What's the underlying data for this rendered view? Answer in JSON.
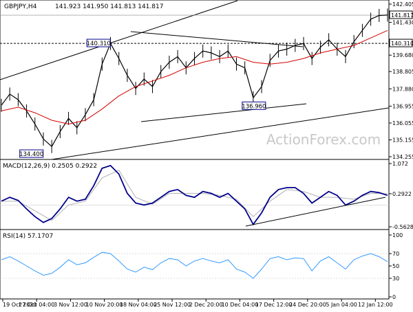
{
  "header": {
    "symbol_text": "GBPJPY,H4",
    "ohlc_text": "141.923 141.950 141.813 141.817"
  },
  "watermark": "ActionForex.com",
  "colors": {
    "price_line": "#000000",
    "sma": "#d40000",
    "macd": "#00008b",
    "signal": "#b0b0b0",
    "rsi": "#3399ff",
    "trendline": "#000000",
    "dashed_level": "#000000",
    "watermark": "#c8c8c8",
    "label_box_border": "#00008b",
    "label_box_fill": "#ffffff",
    "current_price_fill": "#ffffff"
  },
  "chart_data": [
    {
      "type": "line",
      "panel": "price",
      "title": "GBPJPY,H4",
      "ylim": [
        134.255,
        142.405
      ],
      "y_ticks": [
        "142.405",
        "141.430",
        "140.310",
        "139.680",
        "138.805",
        "137.880",
        "136.955",
        "136.055",
        "135.155",
        "134.255"
      ],
      "current_price": "141.817",
      "level_label": "140.310",
      "x_labels": [
        "19 Oct 2020",
        "27 Oct 04:00",
        "3 Nov 12:00",
        "10 Nov 20:00",
        "18 Nov 04:00",
        "25 Nov 12:00",
        "2 Dec 20:00",
        "10 Dec 04:00",
        "17 Dec 12:00",
        "24 Dec 20:00",
        "5 Jan 04:00",
        "12 Jan 12:00"
      ],
      "annotations": [
        {
          "text": "140.310",
          "x": 23,
          "y": 140.31
        },
        {
          "text": "134.400",
          "x": 7,
          "y": 134.4
        },
        {
          "text": "136.960",
          "x": 60,
          "y": 136.96
        }
      ],
      "series": [
        {
          "type": "line",
          "x": [
            0,
            2,
            4,
            6,
            8,
            10,
            12,
            14,
            16,
            18,
            20,
            22,
            24,
            26,
            28,
            30,
            32,
            34,
            36,
            38,
            40,
            42,
            44,
            46,
            48,
            50,
            52,
            54,
            56,
            58,
            60,
            62,
            64,
            66,
            68,
            70,
            72,
            74,
            76,
            78,
            80,
            82,
            84,
            86,
            88,
            90,
            92
          ],
          "values": [
            137.0,
            137.6,
            137.3,
            136.7,
            136.0,
            135.2,
            134.8,
            135.6,
            136.3,
            135.8,
            136.5,
            137.3,
            139.2,
            140.3,
            139.5,
            138.6,
            137.9,
            138.4,
            138.0,
            138.8,
            139.3,
            139.6,
            139.0,
            139.5,
            139.9,
            139.8,
            139.6,
            139.9,
            139.2,
            139.0,
            137.4,
            138.0,
            139.4,
            139.9,
            140.0,
            140.2,
            140.3,
            139.5,
            140.1,
            140.5,
            140.0,
            139.6,
            140.4,
            141.0,
            141.6,
            141.8,
            141.82
          ]
        },
        {
          "type": "line",
          "x": [
            0,
            4,
            8,
            12,
            16,
            20,
            24,
            28,
            32,
            36,
            40,
            44,
            48,
            52,
            56,
            60,
            64,
            68,
            72,
            76,
            80,
            84,
            88,
            92
          ],
          "values": [
            136.7,
            136.9,
            136.6,
            136.2,
            136.0,
            136.2,
            136.8,
            137.5,
            138.0,
            138.3,
            138.6,
            139.0,
            139.3,
            139.5,
            139.6,
            139.3,
            139.2,
            139.3,
            139.5,
            139.8,
            140.0,
            140.2,
            140.6,
            141.0
          ]
        }
      ]
    },
    {
      "type": "line",
      "panel": "macd",
      "title": "MACD(12,26,9) 0.2505 0.2922",
      "ylim": [
        -0.5628,
        1.072
      ],
      "y_ticks": [
        "1.072",
        "0.2922",
        "-0.5628"
      ],
      "series": [
        {
          "type": "line",
          "x": [
            0,
            2,
            4,
            6,
            8,
            10,
            12,
            14,
            16,
            18,
            20,
            22,
            24,
            26,
            28,
            30,
            32,
            34,
            36,
            38,
            40,
            42,
            44,
            46,
            48,
            50,
            52,
            54,
            56,
            58,
            60,
            62,
            64,
            66,
            68,
            70,
            72,
            74,
            76,
            78,
            80,
            82,
            84,
            86,
            88,
            90,
            92
          ],
          "values": [
            0.1,
            0.2,
            0.12,
            -0.1,
            -0.3,
            -0.45,
            -0.35,
            -0.1,
            0.2,
            0.1,
            0.15,
            0.5,
            0.95,
            1.02,
            0.8,
            0.3,
            0.05,
            0.0,
            0.05,
            0.2,
            0.35,
            0.4,
            0.25,
            0.2,
            0.35,
            0.3,
            0.2,
            0.3,
            0.1,
            -0.1,
            -0.5,
            -0.2,
            0.2,
            0.4,
            0.45,
            0.45,
            0.3,
            0.05,
            0.2,
            0.35,
            0.25,
            0.0,
            0.1,
            0.25,
            0.35,
            0.32,
            0.25
          ]
        },
        {
          "type": "line",
          "x": [
            0,
            4,
            8,
            12,
            16,
            20,
            24,
            28,
            32,
            36,
            40,
            44,
            48,
            52,
            56,
            60,
            64,
            68,
            72,
            76,
            80,
            84,
            88,
            92
          ],
          "values": [
            0.1,
            0.1,
            -0.15,
            -0.4,
            0.0,
            0.1,
            0.7,
            0.9,
            0.2,
            0.02,
            0.3,
            0.3,
            0.3,
            0.25,
            0.15,
            -0.3,
            0.1,
            0.4,
            0.35,
            0.2,
            0.2,
            0.15,
            0.3,
            0.29
          ]
        }
      ]
    },
    {
      "type": "line",
      "panel": "rsi",
      "title": "RSI(14) 57.1707",
      "ylim": [
        0,
        100
      ],
      "y_ticks": [
        "100",
        "70",
        "50",
        "30",
        "0"
      ],
      "series": [
        {
          "type": "line",
          "x": [
            0,
            2,
            4,
            6,
            8,
            10,
            12,
            14,
            16,
            18,
            20,
            22,
            24,
            26,
            28,
            30,
            32,
            34,
            36,
            38,
            40,
            42,
            44,
            46,
            48,
            50,
            52,
            54,
            56,
            58,
            60,
            62,
            64,
            66,
            68,
            70,
            72,
            74,
            76,
            78,
            80,
            82,
            84,
            86,
            88,
            90,
            92
          ],
          "values": [
            60,
            65,
            58,
            50,
            42,
            35,
            38,
            48,
            60,
            52,
            55,
            64,
            72,
            70,
            58,
            45,
            40,
            48,
            44,
            55,
            62,
            60,
            50,
            58,
            62,
            58,
            55,
            60,
            45,
            40,
            30,
            45,
            62,
            65,
            60,
            63,
            62,
            42,
            58,
            65,
            55,
            45,
            60,
            66,
            70,
            65,
            57
          ]
        }
      ]
    }
  ]
}
